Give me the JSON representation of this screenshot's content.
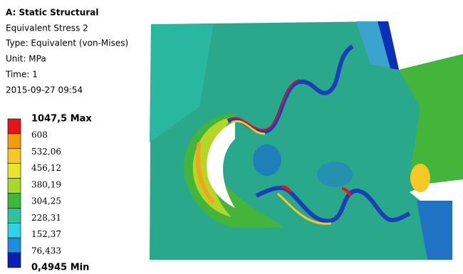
{
  "header": {
    "title": "A: Static Structural",
    "lines": [
      "Equivalent Stress 2",
      "Type: Equivalent (von-Mises)",
      "Unit: MPa",
      "Time: 1",
      "2015-09-27 09:54"
    ]
  },
  "legend": {
    "labels": [
      "1047,5 Max",
      "608",
      "532,06",
      "456,12",
      "380,19",
      "304,25",
      "228,31",
      "152,37",
      "76,433",
      "0,4945 Min"
    ],
    "colors": [
      "#e8141a",
      "#f59a0b",
      "#f5c825",
      "#e8e62a",
      "#a6d92a",
      "#3cb83a",
      "#2fc29b",
      "#2ed3e6",
      "#1c8fe0",
      "#0a1fb8"
    ]
  }
}
